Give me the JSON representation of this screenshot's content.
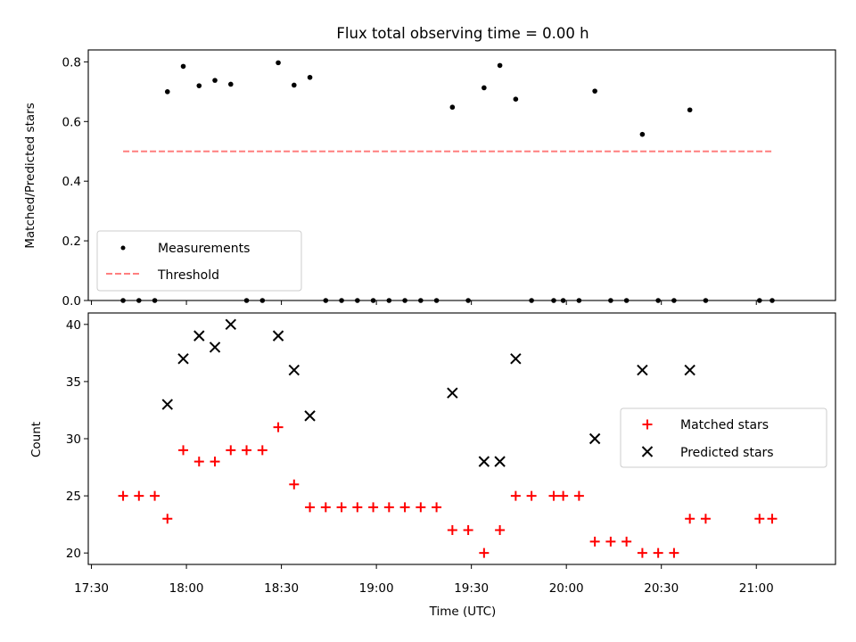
{
  "chart_data": [
    {
      "type": "scatter",
      "title": "Flux total observing time = 0.00 h",
      "xlabel": "",
      "ylabel": "Matched/Predicted stars",
      "ylim": [
        0,
        0.84
      ],
      "yticks": [
        0.0,
        0.2,
        0.4,
        0.6,
        0.8
      ],
      "ytick_labels": [
        "0.0",
        "0.2",
        "0.4",
        "0.6",
        "0.8"
      ],
      "legend_position": "lower-left",
      "series": [
        {
          "name": "Measurements",
          "marker": "dot",
          "color": "#000000",
          "x": [
            "17:40",
            "17:45",
            "17:50",
            "17:54",
            "17:59",
            "18:04",
            "18:09",
            "18:14",
            "18:19",
            "18:24",
            "18:29",
            "18:34",
            "18:39",
            "18:44",
            "18:49",
            "18:54",
            "18:59",
            "19:04",
            "19:09",
            "19:14",
            "19:19",
            "19:24",
            "19:29",
            "19:34",
            "19:39",
            "19:44",
            "19:49",
            "19:56",
            "19:59",
            "20:04",
            "20:09",
            "20:14",
            "20:19",
            "20:24",
            "20:29",
            "20:34",
            "20:39",
            "20:44",
            "21:01",
            "21:05"
          ],
          "y": [
            0,
            0,
            0,
            0.7,
            0.785,
            0.72,
            0.738,
            0.725,
            0,
            0,
            0.797,
            0.722,
            0.748,
            0,
            0,
            0,
            0,
            0,
            0,
            0,
            0,
            0.648,
            0,
            0.713,
            0.788,
            0.675,
            0,
            0,
            0,
            0,
            0.702,
            0,
            0,
            0.557,
            0,
            0,
            0.639,
            0,
            0,
            0
          ]
        },
        {
          "name": "Threshold",
          "line": "dashed",
          "color": "#ff7f7f",
          "x": [
            "17:40",
            "21:05"
          ],
          "y": [
            0.5,
            0.5
          ]
        }
      ]
    },
    {
      "type": "scatter",
      "title": "",
      "xlabel": "Time (UTC)",
      "ylabel": "Count",
      "ylim": [
        19,
        41
      ],
      "yticks": [
        20,
        25,
        30,
        35,
        40
      ],
      "ytick_labels": [
        "20",
        "25",
        "30",
        "35",
        "40"
      ],
      "xlim": [
        "17:29",
        "21:25"
      ],
      "xticks": [
        "17:30",
        "18:00",
        "18:30",
        "19:00",
        "19:30",
        "20:00",
        "20:30",
        "21:00"
      ],
      "legend_position": "right",
      "series": [
        {
          "name": "Matched stars",
          "marker": "plus",
          "color": "#ff0000",
          "x": [
            "17:40",
            "17:45",
            "17:50",
            "17:54",
            "17:59",
            "18:04",
            "18:09",
            "18:14",
            "18:19",
            "18:24",
            "18:29",
            "18:34",
            "18:39",
            "18:44",
            "18:49",
            "18:54",
            "18:59",
            "19:04",
            "19:09",
            "19:14",
            "19:19",
            "19:24",
            "19:29",
            "19:34",
            "19:39",
            "19:44",
            "19:49",
            "19:56",
            "19:59",
            "20:04",
            "20:09",
            "20:14",
            "20:19",
            "20:24",
            "20:29",
            "20:34",
            "20:39",
            "20:44",
            "21:01",
            "21:05"
          ],
          "y": [
            25,
            25,
            25,
            23,
            29,
            28,
            28,
            29,
            29,
            29,
            31,
            26,
            24,
            24,
            24,
            24,
            24,
            24,
            24,
            24,
            24,
            22,
            22,
            20,
            22,
            25,
            25,
            25,
            25,
            25,
            21,
            21,
            21,
            20,
            20,
            20,
            23,
            23,
            23,
            23
          ]
        },
        {
          "name": "Predicted stars",
          "marker": "x",
          "color": "#000000",
          "x": [
            "17:54",
            "17:59",
            "18:04",
            "18:09",
            "18:14",
            "18:29",
            "18:34",
            "18:39",
            "19:24",
            "19:34",
            "19:39",
            "19:44",
            "20:09",
            "20:24",
            "20:39"
          ],
          "y": [
            33,
            37,
            39,
            38,
            40,
            39,
            36,
            32,
            34,
            28,
            28,
            37,
            30,
            36,
            36
          ]
        }
      ]
    }
  ]
}
